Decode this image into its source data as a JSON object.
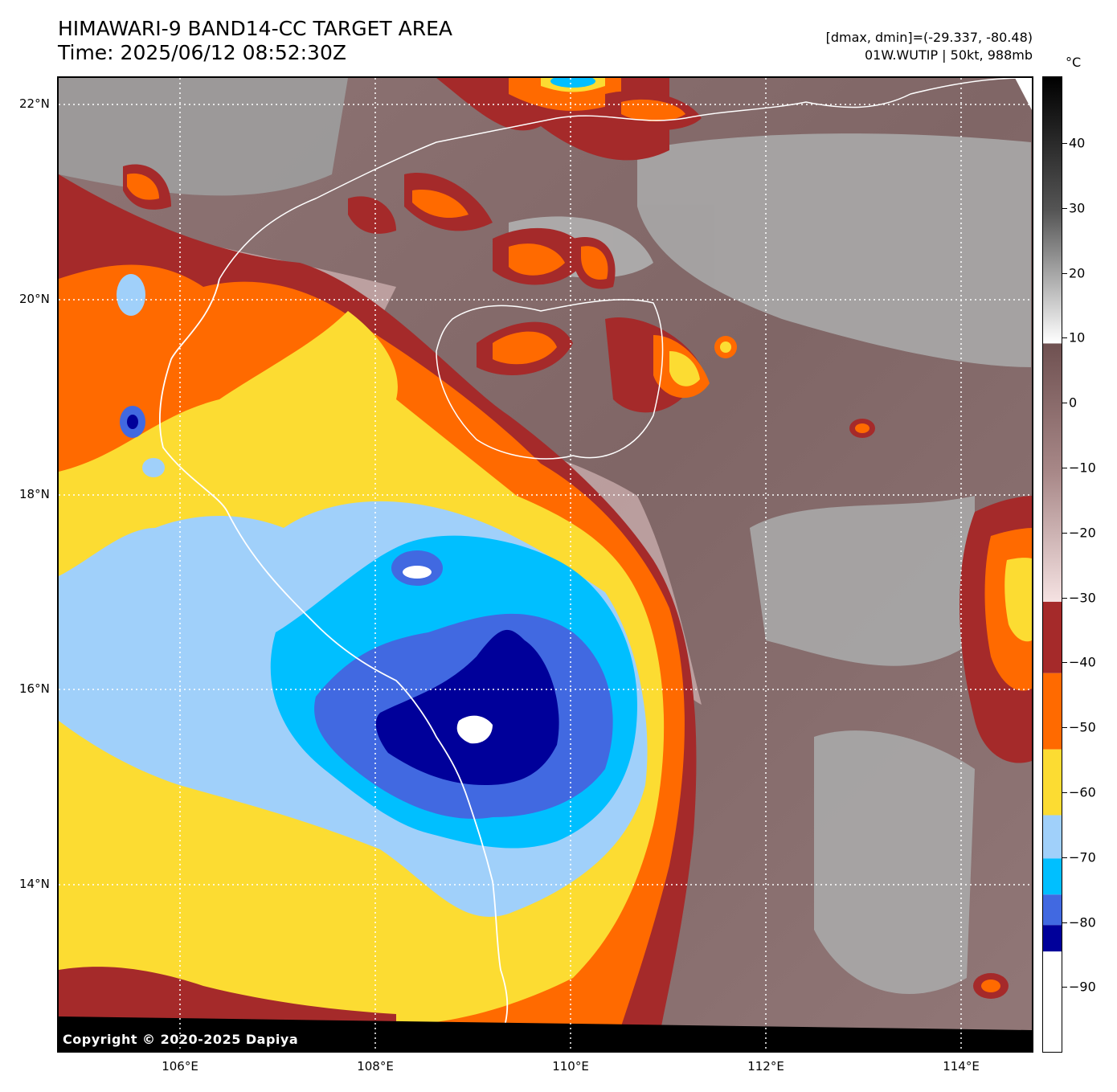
{
  "title_line1": "HIMAWARI-9 BAND14-CC TARGET AREA",
  "title_line2": "Time: 2025/06/12 08:52:30Z",
  "info_line1": "[dmax, dmin]=(-29.337, -80.48)",
  "info_line2": "01W.WUTIP | 50kt, 988mb",
  "copyright": "Copyright © 2020-2025 Dapiya",
  "lat_labels": [
    "22°N",
    "20°N",
    "18°N",
    "16°N",
    "14°N"
  ],
  "lon_labels": [
    "106°E",
    "108°E",
    "110°E",
    "112°E",
    "114°E"
  ],
  "colorbar": {
    "unit": "°C",
    "tick_labels": [
      "40",
      "30",
      "20",
      "10",
      "0",
      "−10",
      "−20",
      "−30",
      "−40",
      "−50",
      "−60",
      "−70",
      "−80",
      "−90"
    ],
    "colors": {
      "gray_scale": "#9a9a9a",
      "brown_scale": "#7d6161",
      "dark_red": "#a52a2a",
      "orange": "#ff6a00",
      "yellow": "#fcdc32",
      "light_blue": "#a0d0fa",
      "cyan": "#00bfff",
      "royal_blue": "#4169e1",
      "navy": "#00009a",
      "white": "#ffffff"
    }
  }
}
